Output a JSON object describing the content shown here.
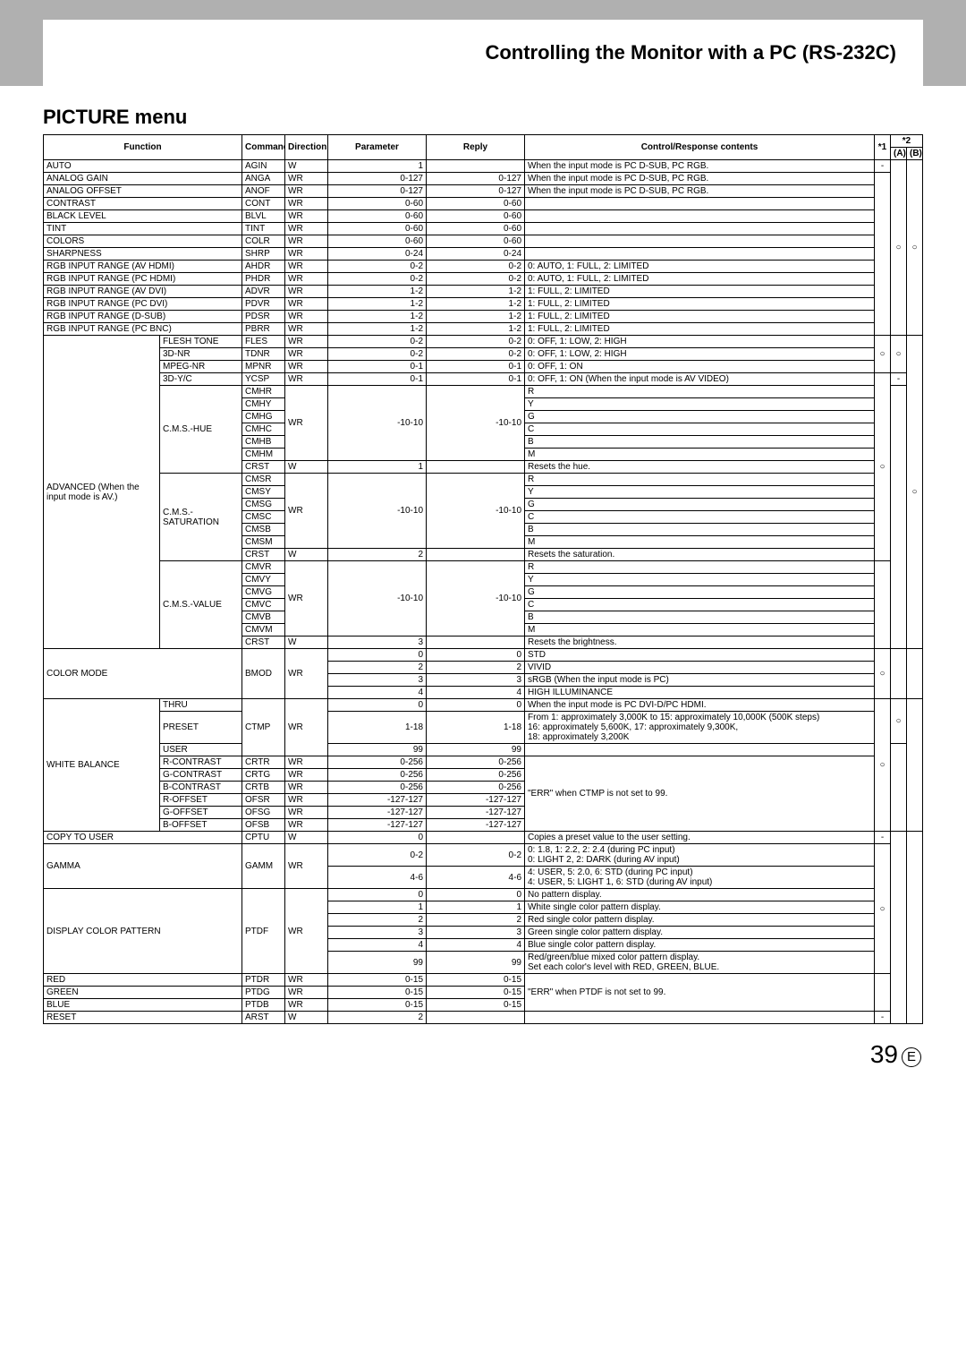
{
  "page": {
    "section_title": "Controlling the Monitor with a PC (RS-232C)",
    "menu_title": "PICTURE menu",
    "page_number": "39",
    "page_suffix": "E"
  },
  "head": {
    "function": "Function",
    "command": "Command",
    "direction": "Direction",
    "parameter": "Parameter",
    "reply": "Reply",
    "content": "Control/Response contents",
    "s1": "*1",
    "s2": "*2",
    "s2a": "(A)",
    "s2b": "(B)"
  },
  "circle": "○",
  "dash": "-",
  "rows": [
    {
      "f": "AUTO",
      "cmd": "AGIN",
      "dir": "W",
      "param": "1",
      "reply": "",
      "content": "When the input mode is PC D-SUB, PC RGB.",
      "s1": "-"
    },
    {
      "f": "ANALOG GAIN",
      "cmd": "ANGA",
      "dir": "WR",
      "param": "0-127",
      "reply": "0-127",
      "content": "When the input mode is PC D-SUB, PC RGB."
    },
    {
      "f": "ANALOG OFFSET",
      "cmd": "ANOF",
      "dir": "WR",
      "param": "0-127",
      "reply": "0-127",
      "content": "When the input mode is PC D-SUB, PC RGB."
    },
    {
      "f": "CONTRAST",
      "cmd": "CONT",
      "dir": "WR",
      "param": "0-60",
      "reply": "0-60",
      "content": ""
    },
    {
      "f": "BLACK LEVEL",
      "cmd": "BLVL",
      "dir": "WR",
      "param": "0-60",
      "reply": "0-60",
      "content": ""
    },
    {
      "f": "TINT",
      "cmd": "TINT",
      "dir": "WR",
      "param": "0-60",
      "reply": "0-60",
      "content": ""
    },
    {
      "f": "COLORS",
      "cmd": "COLR",
      "dir": "WR",
      "param": "0-60",
      "reply": "0-60",
      "content": ""
    },
    {
      "f": "SHARPNESS",
      "cmd": "SHRP",
      "dir": "WR",
      "param": "0-24",
      "reply": "0-24",
      "content": ""
    },
    {
      "f": "RGB INPUT RANGE (AV HDMI)",
      "cmd": "AHDR",
      "dir": "WR",
      "param": "0-2",
      "reply": "0-2",
      "content": "0: AUTO, 1: FULL, 2: LIMITED"
    },
    {
      "f": "RGB INPUT RANGE (PC HDMI)",
      "cmd": "PHDR",
      "dir": "WR",
      "param": "0-2",
      "reply": "0-2",
      "content": "0: AUTO, 1: FULL, 2: LIMITED"
    },
    {
      "f": "RGB INPUT RANGE (AV DVI)",
      "cmd": "ADVR",
      "dir": "WR",
      "param": "1-2",
      "reply": "1-2",
      "content": "1: FULL, 2: LIMITED"
    },
    {
      "f": "RGB INPUT RANGE (PC DVI)",
      "cmd": "PDVR",
      "dir": "WR",
      "param": "1-2",
      "reply": "1-2",
      "content": "1: FULL, 2: LIMITED"
    },
    {
      "f": "RGB INPUT RANGE (D-SUB)",
      "cmd": "PDSR",
      "dir": "WR",
      "param": "1-2",
      "reply": "1-2",
      "content": "1: FULL, 2: LIMITED"
    },
    {
      "f": "RGB INPUT RANGE (PC BNC)",
      "cmd": "PBRR",
      "dir": "WR",
      "param": "1-2",
      "reply": "1-2",
      "content": "1: FULL, 2: LIMITED"
    }
  ],
  "adv": {
    "label": "ADVANCED (When the input mode is AV.)",
    "fleshtone": {
      "sub": "FLESH TONE",
      "cmd": "FLES",
      "dir": "WR",
      "param": "0-2",
      "reply": "0-2",
      "content": "0: OFF, 1: LOW, 2: HIGH"
    },
    "nr3d": {
      "sub": "3D-NR",
      "cmd": "TDNR",
      "dir": "WR",
      "param": "0-2",
      "reply": "0-2",
      "content": "0: OFF, 1: LOW, 2: HIGH"
    },
    "mpeg": {
      "sub": "MPEG-NR",
      "cmd": "MPNR",
      "dir": "WR",
      "param": "0-1",
      "reply": "0-1",
      "content": "0: OFF, 1: ON"
    },
    "yc3d": {
      "sub": "3D-Y/C",
      "cmd": "YCSP",
      "dir": "WR",
      "param": "0-1",
      "reply": "0-1",
      "content": "0: OFF, 1: ON   (When the input mode is AV VIDEO)"
    },
    "hue": {
      "sub": "C.M.S.-HUE",
      "rows": [
        {
          "cmd": "CMHR",
          "dir": "WR",
          "param": "-10-10",
          "reply": "-10-10",
          "content": "R"
        },
        {
          "cmd": "CMHY",
          "content": "Y"
        },
        {
          "cmd": "CMHG",
          "content": "G"
        },
        {
          "cmd": "CMHC",
          "content": "C"
        },
        {
          "cmd": "CMHB",
          "content": "B"
        },
        {
          "cmd": "CMHM",
          "content": "M"
        },
        {
          "cmd": "CRST",
          "dir": "W",
          "param": "1",
          "reply": "",
          "content": "Resets the hue."
        }
      ]
    },
    "sat": {
      "sub": "C.M.S.-SATURATION",
      "rows": [
        {
          "cmd": "CMSR",
          "dir": "WR",
          "param": "-10-10",
          "reply": "-10-10",
          "content": "R"
        },
        {
          "cmd": "CMSY",
          "content": "Y"
        },
        {
          "cmd": "CMSG",
          "content": "G"
        },
        {
          "cmd": "CMSC",
          "content": "C"
        },
        {
          "cmd": "CMSB",
          "content": "B"
        },
        {
          "cmd": "CMSM",
          "content": "M"
        },
        {
          "cmd": "CRST",
          "dir": "W",
          "param": "2",
          "reply": "",
          "content": "Resets the saturation."
        }
      ]
    },
    "val": {
      "sub": "C.M.S.-VALUE",
      "rows": [
        {
          "cmd": "CMVR",
          "dir": "WR",
          "param": "-10-10",
          "reply": "-10-10",
          "content": "R"
        },
        {
          "cmd": "CMVY",
          "content": "Y"
        },
        {
          "cmd": "CMVG",
          "content": "G"
        },
        {
          "cmd": "CMVC",
          "content": "C"
        },
        {
          "cmd": "CMVB",
          "content": "B"
        },
        {
          "cmd": "CMVM",
          "content": "M"
        },
        {
          "cmd": "CRST",
          "dir": "W",
          "param": "3",
          "reply": "",
          "content": "Resets the brightness."
        }
      ]
    }
  },
  "colormode": {
    "label": "COLOR MODE",
    "cmd": "BMOD",
    "dir": "WR",
    "rows": [
      {
        "param": "0",
        "reply": "0",
        "content": "STD"
      },
      {
        "param": "2",
        "reply": "2",
        "content": "VIVID"
      },
      {
        "param": "3",
        "reply": "3",
        "content": "sRGB (When the input mode is PC)"
      },
      {
        "param": "4",
        "reply": "4",
        "content": "HIGH ILLUMINANCE"
      }
    ]
  },
  "wb": {
    "label": "WHITE BALANCE",
    "cmd": "CTMP",
    "dir": "WR",
    "thru": {
      "sub": "THRU",
      "param": "0",
      "reply": "0",
      "content": "When the input mode is PC DVI-D/PC HDMI."
    },
    "preset": {
      "sub": "PRESET",
      "param": "1-18",
      "reply": "1-18",
      "content": "From 1: approximately 3,000K to 15: approximately 10,000K (500K steps)\n16: approximately 5,600K, 17: approximately 9,300K,\n18: approximately 3,200K"
    },
    "user": {
      "sub": "USER",
      "param": "99",
      "reply": "99",
      "content": ""
    },
    "rc": {
      "sub": "R-CONTRAST",
      "cmd": "CRTR",
      "dir": "WR",
      "param": "0-256",
      "reply": "0-256",
      "content": "\"ERR\" when CTMP is not set to 99."
    },
    "gc": {
      "sub": "G-CONTRAST",
      "cmd": "CRTG",
      "dir": "WR",
      "param": "0-256",
      "reply": "0-256"
    },
    "bc": {
      "sub": "B-CONTRAST",
      "cmd": "CRTB",
      "dir": "WR",
      "param": "0-256",
      "reply": "0-256"
    },
    "ro": {
      "sub": "R-OFFSET",
      "cmd": "OFSR",
      "dir": "WR",
      "param": "-127-127",
      "reply": "-127-127"
    },
    "go": {
      "sub": "G-OFFSET",
      "cmd": "OFSG",
      "dir": "WR",
      "param": "-127-127",
      "reply": "-127-127"
    },
    "bo": {
      "sub": "B-OFFSET",
      "cmd": "OFSB",
      "dir": "WR",
      "param": "-127-127",
      "reply": "-127-127"
    }
  },
  "copy": {
    "label": "COPY TO USER",
    "cmd": "CPTU",
    "dir": "W",
    "param": "0",
    "reply": "",
    "content": "Copies a preset value to the user setting.",
    "s1": "-"
  },
  "gamma": {
    "label": "GAMMA",
    "cmd": "GAMM",
    "dir": "WR",
    "rows": [
      {
        "param": "0-2",
        "reply": "0-2",
        "content": "0: 1.8, 1: 2.2, 2: 2.4 (during PC input)\n0: LIGHT 2, 2: DARK (during AV input)"
      },
      {
        "param": "4-6",
        "reply": "4-6",
        "content": "4: USER, 5: 2.0, 6: STD (during PC input)\n4: USER, 5: LIGHT 1, 6: STD (during AV input)"
      }
    ]
  },
  "dcp": {
    "label": "DISPLAY COLOR PATTERN",
    "cmd": "PTDF",
    "dir": "WR",
    "rows": [
      {
        "param": "0",
        "reply": "0",
        "content": "No pattern display."
      },
      {
        "param": "1",
        "reply": "1",
        "content": "White single color pattern display."
      },
      {
        "param": "2",
        "reply": "2",
        "content": "Red single color pattern display."
      },
      {
        "param": "3",
        "reply": "3",
        "content": "Green single color pattern display."
      },
      {
        "param": "4",
        "reply": "4",
        "content": "Blue single color pattern display."
      },
      {
        "param": "99",
        "reply": "99",
        "content": "Red/green/blue mixed color pattern display.\nSet each color's level with RED, GREEN, BLUE."
      }
    ]
  },
  "end": [
    {
      "f": "RED",
      "cmd": "PTDR",
      "dir": "WR",
      "param": "0-15",
      "reply": "0-15",
      "content": "\"ERR\" when PTDF is not set to 99."
    },
    {
      "f": "GREEN",
      "cmd": "PTDG",
      "dir": "WR",
      "param": "0-15",
      "reply": "0-15",
      "content": ""
    },
    {
      "f": "BLUE",
      "cmd": "PTDB",
      "dir": "WR",
      "param": "0-15",
      "reply": "0-15",
      "content": ""
    },
    {
      "f": "RESET",
      "cmd": "ARST",
      "dir": "W",
      "param": "2",
      "reply": "",
      "content": "",
      "s1": "-"
    }
  ]
}
